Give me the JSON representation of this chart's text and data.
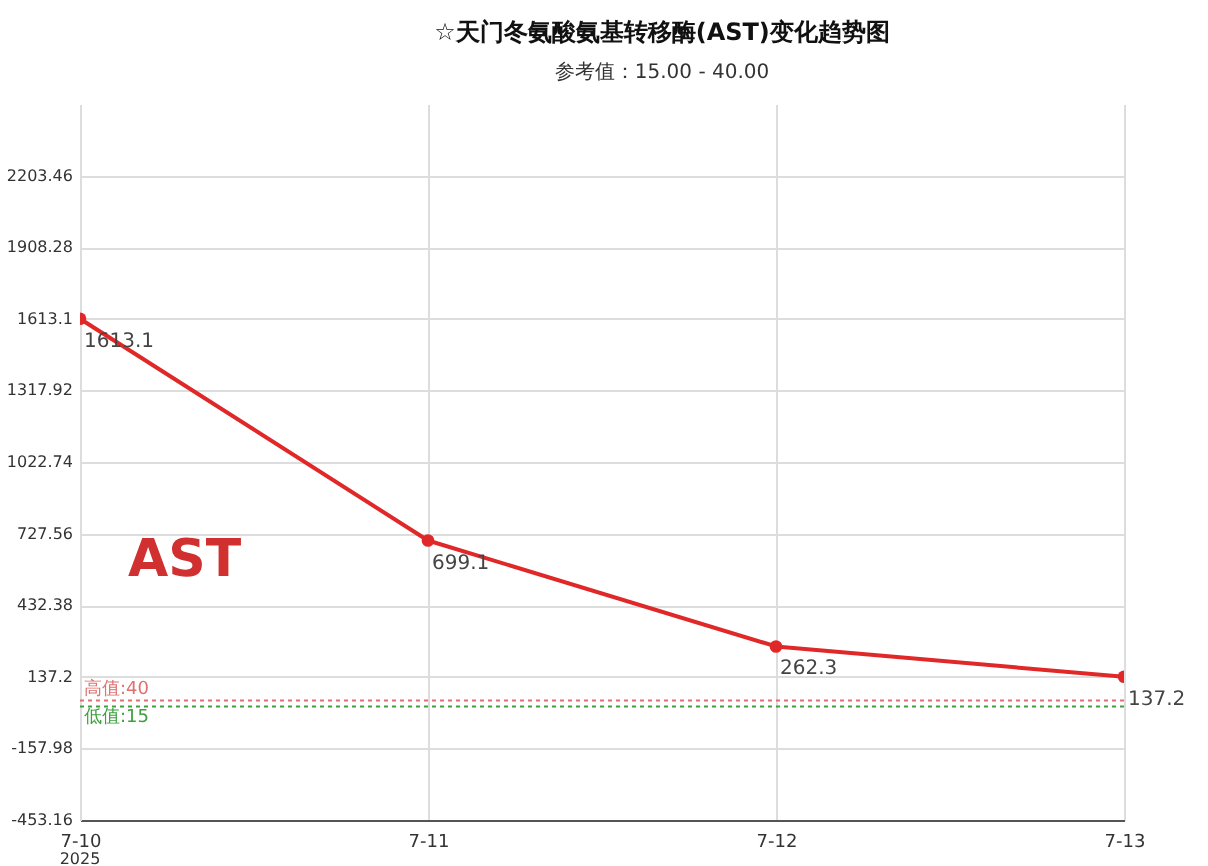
{
  "chart_data": {
    "type": "line",
    "title": "☆天门冬氨酸氨基转移酶(AST)变化趋势图",
    "subtitle": "参考值：15.00 - 40.00",
    "categories": [
      "7-10",
      "7-11",
      "7-12",
      "7-13"
    ],
    "series": [
      {
        "color": "#e02828",
        "values": [
          1613.1,
          699.1,
          262.3,
          137.2
        ]
      }
    ],
    "data_labels": true,
    "marker": "circle",
    "grid": true,
    "ylim": [
      -453.16,
      2498.64
    ],
    "yticks": [
      -453.16,
      -157.98,
      137.2,
      432.38,
      727.56,
      1022.74,
      1317.92,
      1613.1,
      1908.28,
      2203.46
    ],
    "ref_lines": [
      {
        "axis": "y",
        "value": 40,
        "label": "高值:40",
        "color": "#e07070",
        "line_style": "dotted"
      },
      {
        "axis": "y",
        "value": 15,
        "label": "低值:15",
        "color": "#40a040",
        "line_style": "dotted"
      }
    ],
    "annotations": [
      "AST",
      "2025"
    ]
  }
}
